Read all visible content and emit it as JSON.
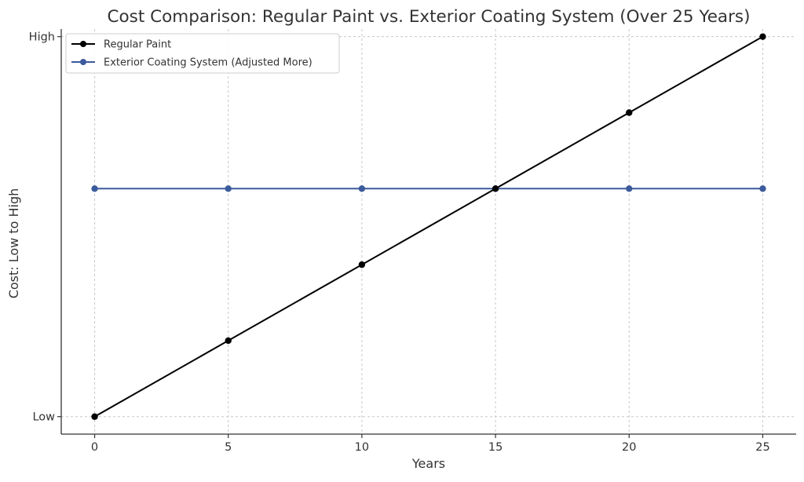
{
  "chart_data": {
    "type": "line",
    "title": "Cost Comparison: Regular Paint vs. Exterior Coating System (Over 25 Years)",
    "xlabel": "Years",
    "ylabel": "Cost: Low to High",
    "x": [
      0,
      5,
      10,
      15,
      20,
      25
    ],
    "xticks": [
      "0",
      "5",
      "10",
      "15",
      "20",
      "25"
    ],
    "yticks": [
      {
        "value": 1,
        "label": "Low"
      },
      {
        "value": 6,
        "label": "High"
      }
    ],
    "xlim": [
      -1.25,
      26.25
    ],
    "ylim": [
      0.77,
      6.1
    ],
    "grid": true,
    "legend_position": "top-left",
    "series": [
      {
        "name": "Regular Paint",
        "color": "#000000",
        "values": [
          1,
          2,
          3,
          4,
          5,
          6
        ]
      },
      {
        "name": "Exterior Coating System (Adjusted More)",
        "color": "#3b5b9c",
        "values": [
          4,
          4,
          4,
          4,
          4,
          4
        ]
      }
    ]
  }
}
